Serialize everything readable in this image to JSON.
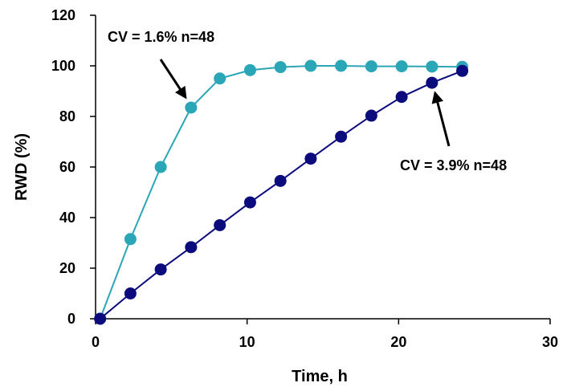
{
  "chart_data": {
    "type": "line",
    "xlabel": "Time, h",
    "ylabel": "RWD (%)",
    "xlim": [
      0,
      30
    ],
    "ylim": [
      0,
      120
    ],
    "xticks": [
      0,
      10,
      20,
      30
    ],
    "yticks": [
      0,
      20,
      40,
      60,
      80,
      100,
      120
    ],
    "grid": false,
    "legend": "none",
    "series": [
      {
        "color": "#2AA6B7",
        "x": [
          0.3,
          2.3,
          4.3,
          6.3,
          8.2,
          10.2,
          12.2,
          14.2,
          16.2,
          18.2,
          20.2,
          22.2,
          24.2
        ],
        "y": [
          0,
          31.5,
          60,
          83.5,
          95,
          98.3,
          99.5,
          100,
          100,
          99.8,
          99.8,
          99.7,
          99.6
        ]
      },
      {
        "color": "#0B0B7E",
        "x": [
          0.3,
          2.3,
          4.3,
          6.3,
          8.2,
          10.2,
          12.2,
          14.2,
          16.2,
          18.2,
          20.2,
          22.2,
          24.2
        ],
        "y": [
          0,
          10,
          19.5,
          28.3,
          37,
          46,
          54.5,
          63.3,
          72,
          80.3,
          87.7,
          93.3,
          98
        ]
      }
    ],
    "annotations": [
      {
        "text": "CV = 1.6% n=48",
        "target_series": 0,
        "target_point": 3
      },
      {
        "text": "CV = 3.9% n=48",
        "target_series": 1,
        "target_point": 11
      }
    ]
  }
}
